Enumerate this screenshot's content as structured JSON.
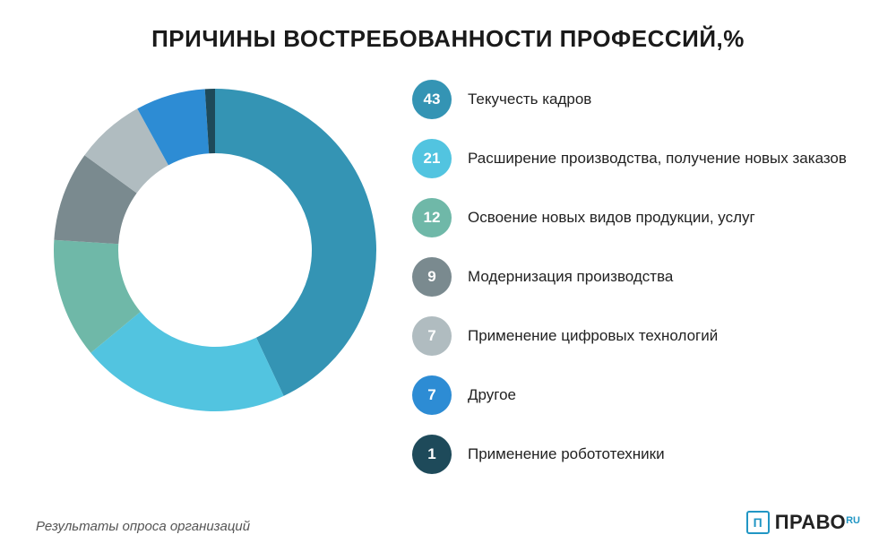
{
  "title": {
    "text": "ПРИЧИНЫ ВОСТРЕБОВАННОСТИ ПРОФЕССИЙ,%",
    "fontsize": 26,
    "color": "#1a1a1a"
  },
  "chart": {
    "type": "donut",
    "outer_radius": 180,
    "inner_radius": 108,
    "start_angle_deg": -90,
    "background_color": "#ffffff",
    "segments": [
      {
        "value": 43,
        "label": "Текучесть кадров",
        "color": "#3494b4"
      },
      {
        "value": 21,
        "label": "Расширение производства, получение новых заказов",
        "color": "#52c4e0"
      },
      {
        "value": 12,
        "label": "Освоение новых видов продукции, услуг",
        "color": "#6fb8a8"
      },
      {
        "value": 9,
        "label": "Модернизация производства",
        "color": "#7a8a8f"
      },
      {
        "value": 7,
        "label": "Применение цифровых технологий",
        "color": "#b0bcc0"
      },
      {
        "value": 7,
        "label": "Другое",
        "color": "#2d8cd4"
      },
      {
        "value": 1,
        "label": "Применение робототехники",
        "color": "#1e4a5a"
      }
    ]
  },
  "legend": {
    "badge_diameter": 44,
    "badge_fontsize": 17,
    "label_fontsize": 17,
    "label_color": "#222222"
  },
  "footer": {
    "source": "Результаты опроса организаций",
    "brand_icon": "П",
    "brand_text": "ПРАВО",
    "brand_suffix": "RU",
    "brand_color": "#2196c4"
  }
}
